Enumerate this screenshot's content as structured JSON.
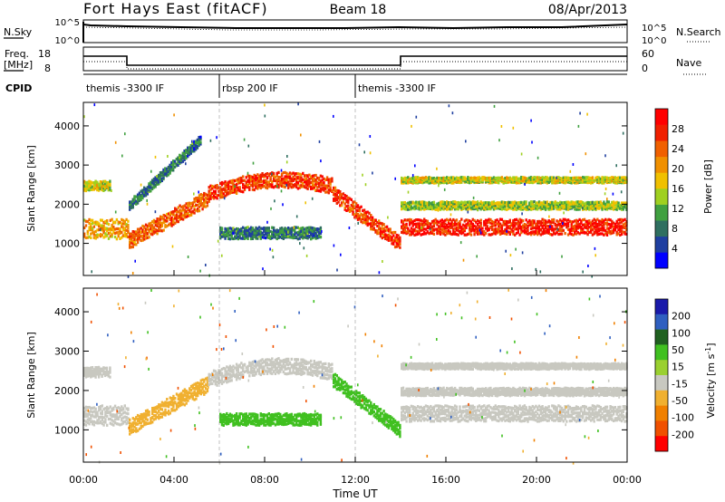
{
  "header": {
    "station": "Fort Hays East (fitACF)",
    "beam": "Beam 18",
    "date": "08/Apr/2013"
  },
  "noise_panel": {
    "left_label": "N.Sky",
    "right_label": "N.Search",
    "left_ticks": [
      "10^5",
      "10^0"
    ],
    "right_ticks": [
      "10^5",
      "10^0"
    ]
  },
  "freq_panel": {
    "left_label_line1": "Freq.",
    "left_label_line2": "[MHz]",
    "left_ticks": [
      "18",
      "8"
    ],
    "right_label": "Nave",
    "right_ticks": [
      "60",
      "0"
    ]
  },
  "cpid_panel": {
    "label": "CPID",
    "segments": [
      {
        "start_hour": 0.0,
        "end_hour": 6.0,
        "name": "themis -3300 IF"
      },
      {
        "start_hour": 6.0,
        "end_hour": 12.0,
        "name": "rbsp 200 IF"
      },
      {
        "start_hour": 12.0,
        "end_hour": 24.0,
        "name": "themis -3300 IF"
      }
    ]
  },
  "colors": {
    "power_scale": [
      "#0000ff",
      "#1f3fa0",
      "#2f6f60",
      "#40a040",
      "#9fd020",
      "#f0c000",
      "#f09000",
      "#f06000",
      "#f02000",
      "#ff0000"
    ],
    "velocity_scale": [
      "#1a1aaa",
      "#2f5fc0",
      "#206020",
      "#40c020",
      "#9ad030",
      "#c8c8c0",
      "#f0b030",
      "#f08000",
      "#f05000",
      "#ff0000"
    ]
  },
  "chart_data": [
    {
      "type": "heatmap",
      "name": "power",
      "ylabel": "Slant Range [km]",
      "yticks": [
        1000,
        2000,
        3000,
        4000
      ],
      "ylim": [
        180,
        4600
      ],
      "xlim": [
        0,
        24
      ],
      "colorbar_label": "Power [dB]",
      "colorbar_ticks": [
        4,
        8,
        12,
        16,
        20,
        24,
        28
      ],
      "colorbar_range": [
        0,
        32
      ],
      "echo_bands": [
        {
          "t0": 0.0,
          "t1": 2.0,
          "r_center": 1400,
          "r_width": 500,
          "value": 20
        },
        {
          "t0": 0.0,
          "t1": 1.2,
          "r_center": 2500,
          "r_width": 250,
          "value": 16
        },
        {
          "t0": 2.0,
          "t1": 5.5,
          "r_center": 1100,
          "r_center_end": 2200,
          "r_width": 400,
          "value": 24
        },
        {
          "t0": 2.0,
          "t1": 5.2,
          "r_center": 2000,
          "r_center_end": 3700,
          "r_width": 250,
          "value": 8
        },
        {
          "t0": 5.5,
          "t1": 11.0,
          "r_center": 2300,
          "r_center_end": 2500,
          "r_width": 400,
          "value": 26
        },
        {
          "t0": 6.0,
          "t1": 10.5,
          "r_center": 1300,
          "r_width": 300,
          "value": 8
        },
        {
          "t0": 11.0,
          "t1": 14.0,
          "r_center": 2300,
          "r_center_end": 1000,
          "r_width": 400,
          "value": 26
        },
        {
          "t0": 14.0,
          "t1": 24.0,
          "r_center": 1450,
          "r_width": 400,
          "value": 28
        },
        {
          "t0": 14.0,
          "t1": 24.0,
          "r_center": 2650,
          "r_width": 150,
          "value": 16
        },
        {
          "t0": 14.0,
          "t1": 24.0,
          "r_center": 2000,
          "r_width": 200,
          "value": 14
        }
      ]
    },
    {
      "type": "heatmap",
      "name": "velocity",
      "ylabel": "Slant Range [km]",
      "xlabel": "Time UT",
      "xticks": [
        "00:00",
        "04:00",
        "08:00",
        "12:00",
        "16:00",
        "20:00",
        "00:00"
      ],
      "yticks": [
        1000,
        2000,
        3000,
        4000
      ],
      "ylim": [
        180,
        4600
      ],
      "xlim": [
        0,
        24
      ],
      "colorbar_label": "Velocity [m s^-1]",
      "colorbar_ticks": [
        200,
        100,
        50,
        15,
        -15,
        -50,
        -100,
        -200
      ],
      "echo_bands": [
        {
          "t0": 0.0,
          "t1": 2.0,
          "r_center": 1400,
          "r_width": 500,
          "value": 0
        },
        {
          "t0": 0.0,
          "t1": 1.2,
          "r_center": 2500,
          "r_width": 250,
          "value": 0
        },
        {
          "t0": 2.0,
          "t1": 5.5,
          "r_center": 1100,
          "r_center_end": 2200,
          "r_width": 400,
          "value": -30
        },
        {
          "t0": 5.5,
          "t1": 11.0,
          "r_center": 2300,
          "r_center_end": 2500,
          "r_width": 400,
          "value": 0
        },
        {
          "t0": 6.0,
          "t1": 10.5,
          "r_center": 1300,
          "r_width": 300,
          "value": 30
        },
        {
          "t0": 11.0,
          "t1": 14.0,
          "r_center": 2300,
          "r_center_end": 1000,
          "r_width": 350,
          "value": 35
        },
        {
          "t0": 14.0,
          "t1": 24.0,
          "r_center": 1450,
          "r_width": 400,
          "value": 0
        },
        {
          "t0": 14.0,
          "t1": 24.0,
          "r_center": 2650,
          "r_width": 150,
          "value": 0
        },
        {
          "t0": 14.0,
          "t1": 24.0,
          "r_center": 2000,
          "r_width": 200,
          "value": 0
        }
      ]
    }
  ]
}
